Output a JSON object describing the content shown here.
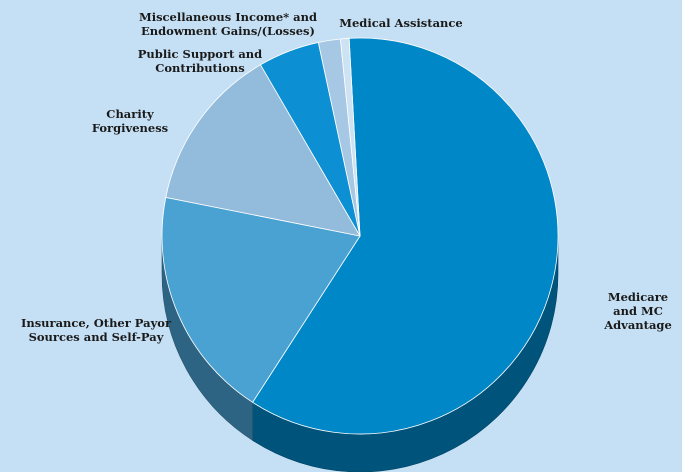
{
  "chart_data": {
    "type": "pie",
    "title": "",
    "legend": "none",
    "slices": [
      {
        "label": "Medicare\nand MC\nAdvantage",
        "value": 60.0,
        "color": "#0087c8"
      },
      {
        "label": "Insurance, Other Payor\nSources and Self-Pay",
        "value": 19.0,
        "color": "#4aa2d3"
      },
      {
        "label": "Charity\nForgiveness",
        "value": 13.5,
        "color": "#93bcdc"
      },
      {
        "label": "Public Support and\nContributions",
        "value": 5.0,
        "color": "#0c90d3"
      },
      {
        "label": "Miscellaneous Income* and\nEndowment Gains/(Losses)",
        "value": 1.8,
        "color": "#a6c8e4"
      },
      {
        "label": "Medical Assistance",
        "value": 0.7,
        "color": "#cde2f3"
      }
    ]
  }
}
